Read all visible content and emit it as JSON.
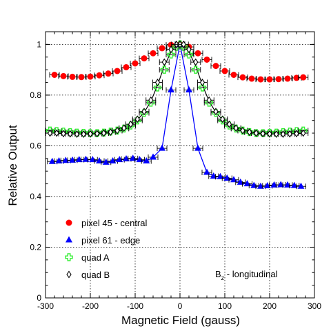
{
  "chart_data": {
    "type": "scatter",
    "xlabel": "Magnetic Field (gauss)",
    "ylabel": "Relative Output",
    "xlim": [
      -300,
      300
    ],
    "ylim": [
      0,
      1.05
    ],
    "xticks": [
      -300,
      -200,
      -100,
      0,
      100,
      200,
      300
    ],
    "yticks": [
      0,
      0.2,
      0.4,
      0.6,
      0.8,
      1
    ],
    "xtick_labels": [
      "-300",
      "-200",
      "-100",
      "0",
      "100",
      "200",
      "300"
    ],
    "ytick_labels": [
      "0",
      "0.2",
      "0.4",
      "0.6",
      "0.8",
      "1"
    ],
    "grid": true,
    "legend_position": "lower-left",
    "annotation": {
      "main": "B",
      "sub": "z",
      "rest": " - longitudinal"
    },
    "series": [
      {
        "name": "pixel 45 - central",
        "marker": "circle",
        "color": "#ff0000",
        "connected": false,
        "x": [
          -280,
          -260,
          -240,
          -220,
          -200,
          -180,
          -160,
          -140,
          -120,
          -100,
          -80,
          -60,
          -40,
          -20,
          0,
          20,
          40,
          60,
          80,
          100,
          120,
          140,
          160,
          180,
          200,
          220,
          240,
          260,
          275
        ],
        "y": [
          0.88,
          0.875,
          0.872,
          0.871,
          0.873,
          0.878,
          0.885,
          0.895,
          0.91,
          0.925,
          0.945,
          0.965,
          0.985,
          0.998,
          1.0,
          0.99,
          0.965,
          0.94,
          0.915,
          0.895,
          0.88,
          0.87,
          0.865,
          0.862,
          0.862,
          0.863,
          0.865,
          0.868,
          0.87
        ]
      },
      {
        "name": "pixel 61 - edge",
        "marker": "triangle",
        "color": "#0000ff",
        "connected": true,
        "x": [
          -285,
          -270,
          -255,
          -240,
          -225,
          -210,
          -195,
          -180,
          -165,
          -150,
          -135,
          -120,
          -105,
          -90,
          -75,
          -60,
          -40,
          -20,
          0,
          20,
          40,
          60,
          75,
          90,
          105,
          120,
          135,
          150,
          165,
          180,
          195,
          210,
          225,
          240,
          255,
          270
        ],
        "y": [
          0.538,
          0.54,
          0.542,
          0.543,
          0.545,
          0.546,
          0.545,
          0.54,
          0.535,
          0.54,
          0.545,
          0.548,
          0.55,
          0.545,
          0.54,
          0.555,
          0.59,
          0.82,
          1.0,
          0.82,
          0.59,
          0.495,
          0.48,
          0.478,
          0.472,
          0.466,
          0.456,
          0.45,
          0.443,
          0.44,
          0.442,
          0.445,
          0.446,
          0.445,
          0.443,
          0.44
        ]
      },
      {
        "name": "quad A",
        "marker": "cross",
        "color": "#33ee33",
        "connected": false,
        "x": [
          -290,
          -275,
          -260,
          -245,
          -230,
          -215,
          -200,
          -185,
          -170,
          -155,
          -140,
          -125,
          -110,
          -95,
          -80,
          -65,
          -50,
          -35,
          -20,
          -8,
          0,
          8,
          20,
          35,
          50,
          65,
          80,
          95,
          110,
          125,
          140,
          155,
          170,
          185,
          200,
          215,
          230,
          245,
          260,
          275
        ],
        "y": [
          0.66,
          0.658,
          0.656,
          0.654,
          0.652,
          0.651,
          0.65,
          0.65,
          0.652,
          0.656,
          0.66,
          0.668,
          0.68,
          0.7,
          0.73,
          0.77,
          0.83,
          0.9,
          0.96,
          0.99,
          1.0,
          0.99,
          0.96,
          0.9,
          0.83,
          0.77,
          0.73,
          0.7,
          0.68,
          0.668,
          0.66,
          0.654,
          0.65,
          0.65,
          0.651,
          0.652,
          0.654,
          0.656,
          0.658,
          0.66
        ]
      },
      {
        "name": "quad B",
        "marker": "diamond",
        "color": "#000000",
        "connected": false,
        "x": [
          -290,
          -275,
          -260,
          -245,
          -230,
          -215,
          -200,
          -185,
          -170,
          -155,
          -140,
          -125,
          -110,
          -95,
          -80,
          -65,
          -50,
          -35,
          -20,
          -8,
          0,
          8,
          20,
          35,
          50,
          65,
          80,
          95,
          110,
          125,
          140,
          155,
          170,
          185,
          200,
          215,
          230,
          245,
          260,
          275
        ],
        "y": [
          0.65,
          0.65,
          0.648,
          0.647,
          0.646,
          0.646,
          0.647,
          0.648,
          0.65,
          0.654,
          0.66,
          0.67,
          0.685,
          0.705,
          0.735,
          0.78,
          0.85,
          0.93,
          0.98,
          1.0,
          1.0,
          1.0,
          0.98,
          0.93,
          0.85,
          0.78,
          0.735,
          0.705,
          0.685,
          0.67,
          0.66,
          0.654,
          0.65,
          0.648,
          0.647,
          0.646,
          0.646,
          0.647,
          0.648,
          0.65
        ]
      }
    ],
    "fit_line": {
      "color": "#000000",
      "x": [
        -290,
        -260,
        -230,
        -200,
        -170,
        -140,
        -110,
        -95,
        -80,
        -65,
        -50,
        -35,
        -20,
        -8,
        0,
        8,
        20,
        35,
        50,
        65,
        80,
        95,
        110,
        140,
        170,
        200,
        230,
        260,
        275
      ],
      "y": [
        0.655,
        0.652,
        0.649,
        0.648,
        0.651,
        0.658,
        0.682,
        0.702,
        0.732,
        0.775,
        0.84,
        0.915,
        0.97,
        0.995,
        1.0,
        0.995,
        0.97,
        0.915,
        0.84,
        0.775,
        0.732,
        0.702,
        0.682,
        0.658,
        0.651,
        0.648,
        0.649,
        0.652,
        0.655
      ]
    }
  }
}
